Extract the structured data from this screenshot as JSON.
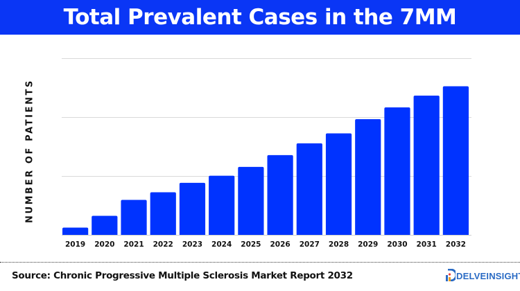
{
  "header": {
    "title": "Total Prevalent Cases in the 7MM"
  },
  "chart_data": {
    "type": "bar",
    "title": "Total Prevalent Cases in the 7MM",
    "xlabel": "",
    "ylabel": "NUMBER OF PATIENTS",
    "categories": [
      "2019",
      "2020",
      "2021",
      "2022",
      "2023",
      "2024",
      "2025",
      "2026",
      "2027",
      "2028",
      "2029",
      "2030",
      "2031",
      "2032"
    ],
    "values": [
      0.13,
      0.33,
      0.6,
      0.73,
      0.89,
      1.01,
      1.16,
      1.36,
      1.56,
      1.73,
      1.97,
      2.17,
      2.37,
      2.53
    ],
    "ylim": [
      0,
      3
    ],
    "y_tick_labels_shown": false,
    "grid": true,
    "bar_color": "#0033ff"
  },
  "footer": {
    "source": "Source: Chronic Progressive Multiple Sclerosis Market Report 2032",
    "logo_text": "DELVEINSIGHT"
  },
  "colors": {
    "header_bg": "#0a36f5",
    "bar": "#0033ff",
    "logo": "#2a6bc4"
  }
}
